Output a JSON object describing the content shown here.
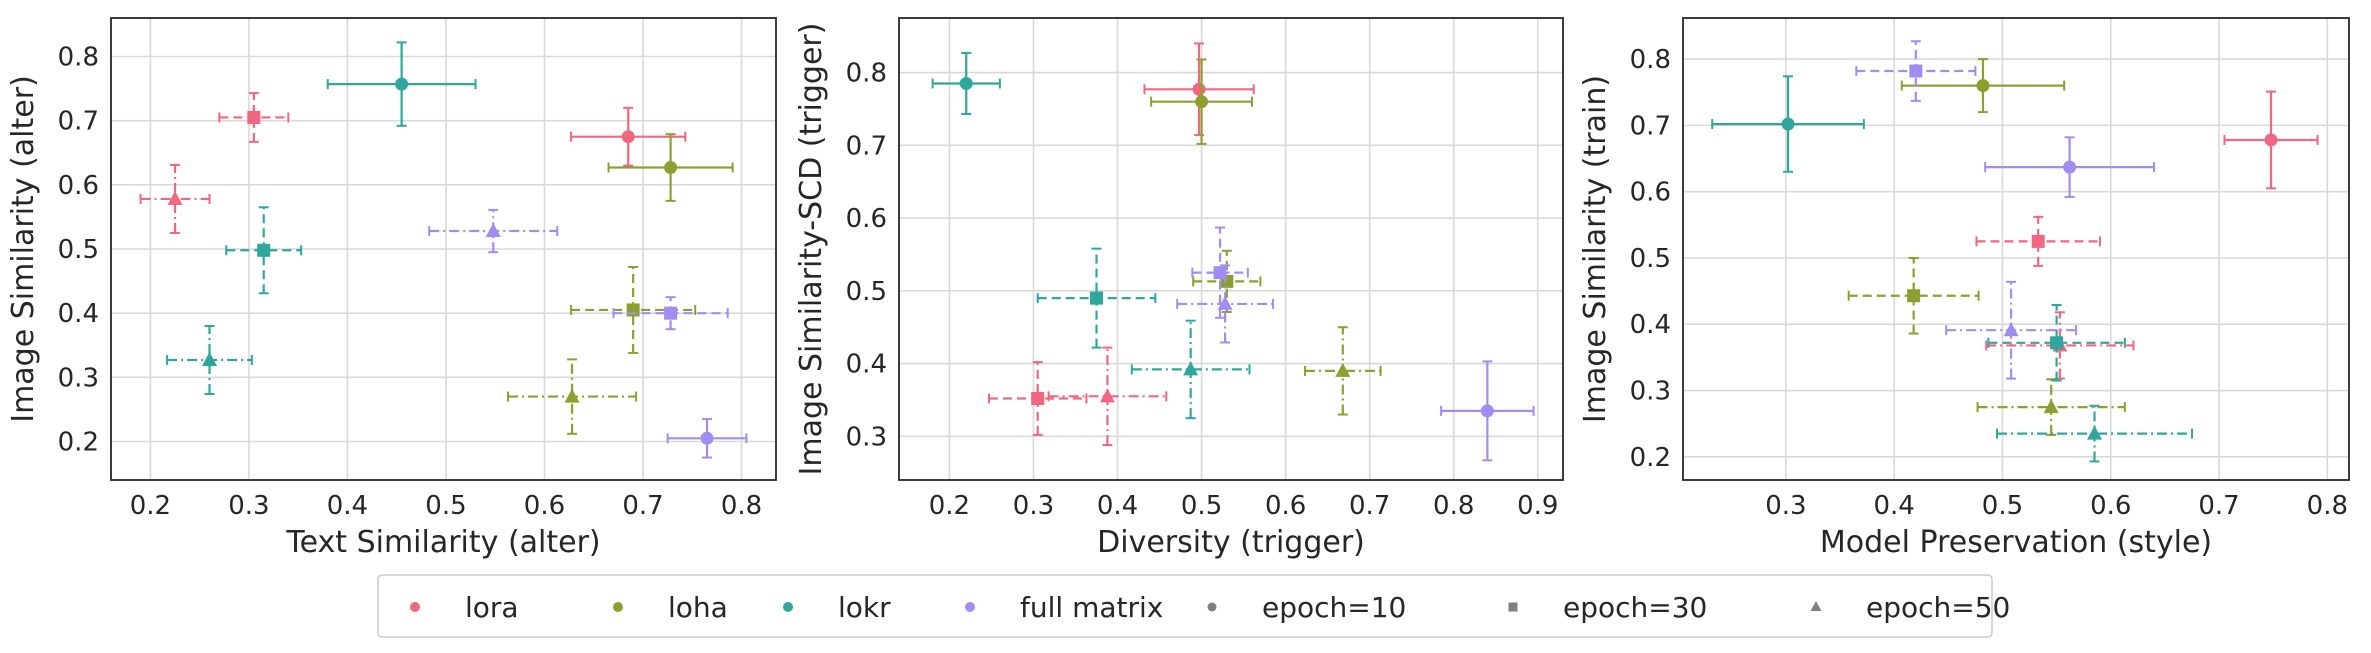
{
  "colors": {
    "lora": "#f0677f",
    "loha": "#8f9f2f",
    "lokr": "#2fa79c",
    "full matrix": "#a38cf1",
    "epoch-marker": "#808080"
  },
  "line_styles": {
    "10": "solid",
    "30": "dashed",
    "50": "dashdot"
  },
  "legend": {
    "placement": "bottom-center",
    "entries": [
      {
        "label": "lora",
        "color": "#f0677f",
        "marker": "circle"
      },
      {
        "label": "loha",
        "color": "#8f9f2f",
        "marker": "circle"
      },
      {
        "label": "lokr",
        "color": "#2fa79c",
        "marker": "circle"
      },
      {
        "label": "full matrix",
        "color": "#a38cf1",
        "marker": "circle"
      },
      {
        "label": "epoch=10",
        "color": "#808080",
        "marker": "circle"
      },
      {
        "label": "epoch=30",
        "color": "#808080",
        "marker": "square"
      },
      {
        "label": "epoch=50",
        "color": "#808080",
        "marker": "triangle"
      }
    ]
  },
  "chart_data": [
    {
      "type": "scatter",
      "title": "",
      "xlabel": "Text Similarity (alter)",
      "ylabel": "Image Similarity (alter)",
      "xlim": [
        0.16,
        0.835
      ],
      "ylim": [
        0.14,
        0.86
      ],
      "xticks": [
        "0.2",
        "0.3",
        "0.4",
        "0.5",
        "0.6",
        "0.7",
        "0.8"
      ],
      "yticks": [
        "0.2",
        "0.3",
        "0.4",
        "0.5",
        "0.6",
        "0.7",
        "0.8"
      ],
      "grid": true,
      "points": [
        {
          "series": "lora",
          "epoch": 10,
          "x": 0.685,
          "y": 0.675,
          "xerr": 0.058,
          "yerr": 0.045
        },
        {
          "series": "lora",
          "epoch": 30,
          "x": 0.305,
          "y": 0.705,
          "xerr": 0.035,
          "yerr": 0.038
        },
        {
          "series": "lora",
          "epoch": 50,
          "x": 0.225,
          "y": 0.578,
          "xerr": 0.035,
          "yerr": 0.053
        },
        {
          "series": "loha",
          "epoch": 10,
          "x": 0.728,
          "y": 0.627,
          "xerr": 0.063,
          "yerr": 0.052
        },
        {
          "series": "loha",
          "epoch": 30,
          "x": 0.69,
          "y": 0.405,
          "xerr": 0.063,
          "yerr": 0.067
        },
        {
          "series": "loha",
          "epoch": 50,
          "x": 0.628,
          "y": 0.27,
          "xerr": 0.065,
          "yerr": 0.058
        },
        {
          "series": "lokr",
          "epoch": 10,
          "x": 0.455,
          "y": 0.757,
          "xerr": 0.075,
          "yerr": 0.065
        },
        {
          "series": "lokr",
          "epoch": 30,
          "x": 0.315,
          "y": 0.498,
          "xerr": 0.038,
          "yerr": 0.067
        },
        {
          "series": "lokr",
          "epoch": 50,
          "x": 0.26,
          "y": 0.327,
          "xerr": 0.043,
          "yerr": 0.053
        },
        {
          "series": "full matrix",
          "epoch": 10,
          "x": 0.765,
          "y": 0.205,
          "xerr": 0.04,
          "yerr": 0.03
        },
        {
          "series": "full matrix",
          "epoch": 30,
          "x": 0.728,
          "y": 0.4,
          "xerr": 0.058,
          "yerr": 0.025
        },
        {
          "series": "full matrix",
          "epoch": 50,
          "x": 0.548,
          "y": 0.528,
          "xerr": 0.065,
          "yerr": 0.033
        }
      ]
    },
    {
      "type": "scatter",
      "title": "",
      "xlabel": "Diversity (trigger)",
      "ylabel": "Image Similarity-SCD (trigger)",
      "xlim": [
        0.14,
        0.93
      ],
      "ylim": [
        0.24,
        0.875
      ],
      "xticks": [
        "0.2",
        "0.3",
        "0.4",
        "0.5",
        "0.6",
        "0.7",
        "0.8",
        "0.9"
      ],
      "yticks": [
        "0.3",
        "0.4",
        "0.5",
        "0.6",
        "0.7",
        "0.8"
      ],
      "grid": true,
      "points": [
        {
          "series": "lora",
          "epoch": 10,
          "x": 0.497,
          "y": 0.777,
          "xerr": 0.065,
          "yerr": 0.063
        },
        {
          "series": "lora",
          "epoch": 30,
          "x": 0.305,
          "y": 0.352,
          "xerr": 0.058,
          "yerr": 0.05
        },
        {
          "series": "lora",
          "epoch": 50,
          "x": 0.388,
          "y": 0.355,
          "xerr": 0.07,
          "yerr": 0.067
        },
        {
          "series": "loha",
          "epoch": 10,
          "x": 0.5,
          "y": 0.76,
          "xerr": 0.06,
          "yerr": 0.058
        },
        {
          "series": "loha",
          "epoch": 30,
          "x": 0.53,
          "y": 0.513,
          "xerr": 0.04,
          "yerr": 0.042
        },
        {
          "series": "loha",
          "epoch": 50,
          "x": 0.668,
          "y": 0.39,
          "xerr": 0.045,
          "yerr": 0.06
        },
        {
          "series": "lokr",
          "epoch": 10,
          "x": 0.22,
          "y": 0.785,
          "xerr": 0.04,
          "yerr": 0.042
        },
        {
          "series": "lokr",
          "epoch": 30,
          "x": 0.375,
          "y": 0.49,
          "xerr": 0.07,
          "yerr": 0.068
        },
        {
          "series": "lokr",
          "epoch": 50,
          "x": 0.487,
          "y": 0.392,
          "xerr": 0.07,
          "yerr": 0.067
        },
        {
          "series": "full matrix",
          "epoch": 10,
          "x": 0.84,
          "y": 0.335,
          "xerr": 0.055,
          "yerr": 0.068
        },
        {
          "series": "full matrix",
          "epoch": 30,
          "x": 0.522,
          "y": 0.525,
          "xerr": 0.033,
          "yerr": 0.062
        },
        {
          "series": "full matrix",
          "epoch": 50,
          "x": 0.528,
          "y": 0.482,
          "xerr": 0.057,
          "yerr": 0.053
        }
      ]
    },
    {
      "type": "scatter",
      "title": "",
      "xlabel": "Model Preservation (style)",
      "ylabel": "Image Similarity (train)",
      "xlim": [
        0.205,
        0.82
      ],
      "ylim": [
        0.165,
        0.862
      ],
      "xticks": [
        "0.3",
        "0.4",
        "0.5",
        "0.6",
        "0.7",
        "0.8"
      ],
      "yticks": [
        "0.2",
        "0.3",
        "0.4",
        "0.5",
        "0.6",
        "0.7",
        "0.8"
      ],
      "grid": true,
      "points": [
        {
          "series": "lora",
          "epoch": 10,
          "x": 0.748,
          "y": 0.678,
          "xerr": 0.043,
          "yerr": 0.073
        },
        {
          "series": "lora",
          "epoch": 30,
          "x": 0.533,
          "y": 0.525,
          "xerr": 0.057,
          "yerr": 0.037
        },
        {
          "series": "lora",
          "epoch": 50,
          "x": 0.553,
          "y": 0.368,
          "xerr": 0.068,
          "yerr": 0.05
        },
        {
          "series": "loha",
          "epoch": 10,
          "x": 0.482,
          "y": 0.76,
          "xerr": 0.075,
          "yerr": 0.04
        },
        {
          "series": "loha",
          "epoch": 30,
          "x": 0.418,
          "y": 0.443,
          "xerr": 0.06,
          "yerr": 0.057
        },
        {
          "series": "loha",
          "epoch": 50,
          "x": 0.545,
          "y": 0.275,
          "xerr": 0.068,
          "yerr": 0.042
        },
        {
          "series": "lokr",
          "epoch": 10,
          "x": 0.302,
          "y": 0.702,
          "xerr": 0.07,
          "yerr": 0.072
        },
        {
          "series": "lokr",
          "epoch": 30,
          "x": 0.55,
          "y": 0.372,
          "xerr": 0.063,
          "yerr": 0.057
        },
        {
          "series": "lokr",
          "epoch": 50,
          "x": 0.585,
          "y": 0.235,
          "xerr": 0.09,
          "yerr": 0.042
        },
        {
          "series": "full matrix",
          "epoch": 10,
          "x": 0.562,
          "y": 0.637,
          "xerr": 0.078,
          "yerr": 0.045
        },
        {
          "series": "full matrix",
          "epoch": 30,
          "x": 0.42,
          "y": 0.782,
          "xerr": 0.055,
          "yerr": 0.045
        },
        {
          "series": "full matrix",
          "epoch": 50,
          "x": 0.508,
          "y": 0.391,
          "xerr": 0.06,
          "yerr": 0.073
        }
      ]
    }
  ]
}
